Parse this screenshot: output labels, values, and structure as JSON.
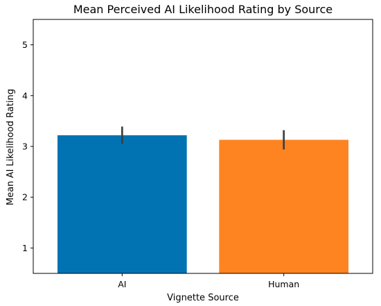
{
  "chart_data": {
    "type": "bar",
    "title": "Mean Perceived AI Likelihood Rating by Source",
    "xlabel": "Vignette Source",
    "ylabel": "Mean AI Likelihood Rating",
    "categories": [
      "AI",
      "Human"
    ],
    "values": [
      3.22,
      3.13
    ],
    "error_bars": [
      {
        "low": 3.05,
        "high": 3.39
      },
      {
        "low": 2.94,
        "high": 3.32
      }
    ],
    "colors": [
      "#0173b2",
      "#fd8421"
    ],
    "error_bar_color": "#3f3f3f",
    "ylim": [
      0.5,
      5.5
    ],
    "yticks": [
      1,
      2,
      3,
      4,
      5
    ],
    "grid": false,
    "legend": "none"
  }
}
